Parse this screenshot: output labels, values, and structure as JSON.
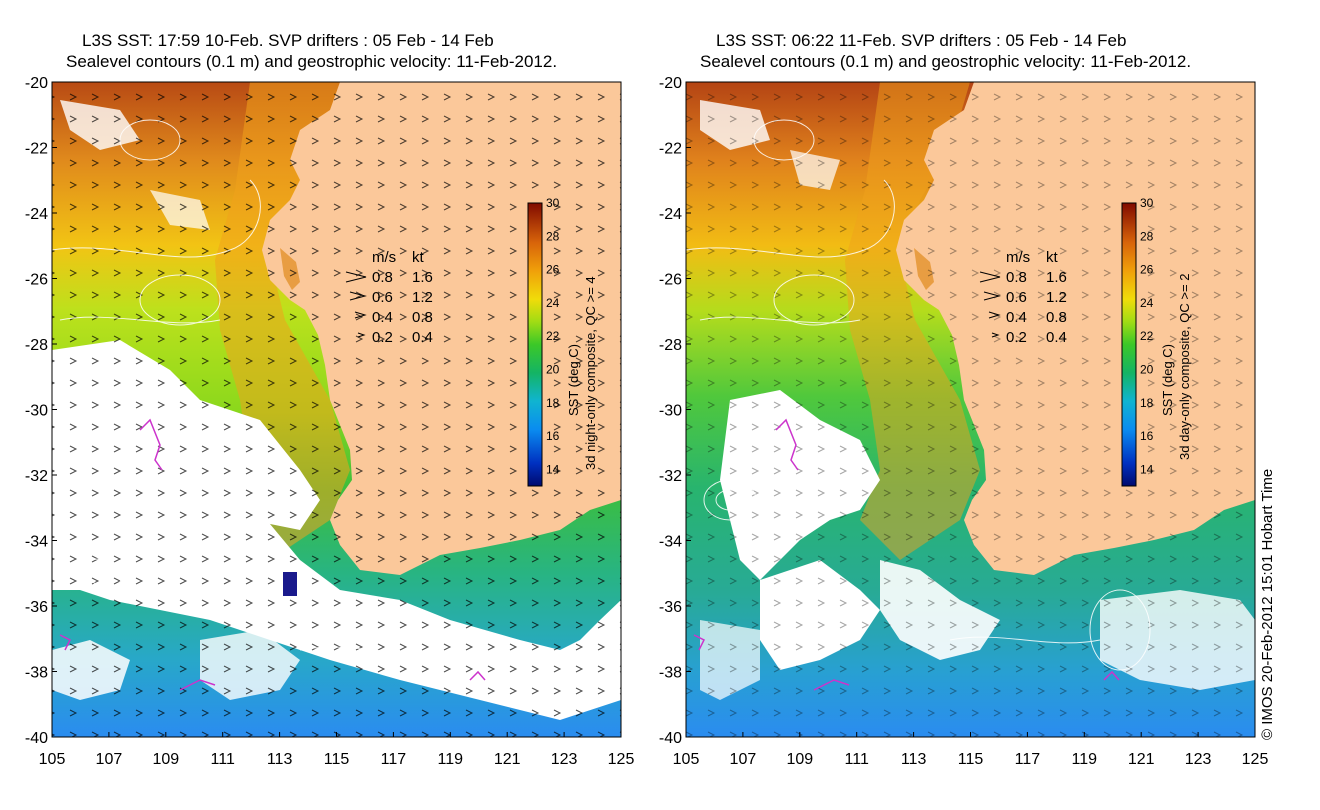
{
  "colors": {
    "land": "#fbc89a",
    "cloud": "#ffffff",
    "drifter": "#cc33cc",
    "contour": "#ffffff",
    "arrow": "#000000"
  },
  "x_ticks": [
    "105",
    "107",
    "109",
    "111",
    "113",
    "115",
    "117",
    "119",
    "121",
    "123",
    "125"
  ],
  "y_ticks": [
    "-20",
    "-22",
    "-24",
    "-26",
    "-28",
    "-30",
    "-32",
    "-34",
    "-36",
    "-38",
    "-40"
  ],
  "colorbar_ticks": [
    "30",
    "28",
    "26",
    "24",
    "22",
    "20",
    "18",
    "16",
    "14"
  ],
  "legend": {
    "header_ms": "m/s",
    "header_kt": "kt",
    "rows": [
      {
        "ms": "0.8",
        "kt": "1.6"
      },
      {
        "ms": "0.6",
        "kt": "1.2"
      },
      {
        "ms": "0.4",
        "kt": "0.8"
      },
      {
        "ms": "0.2",
        "kt": "0.4"
      }
    ]
  },
  "panels": [
    {
      "title_line1": "L3S SST: 17:59 10-Feb. SVP drifters : 05 Feb - 14 Feb",
      "title_line2": "Sealevel contours (0.1 m) and geostrophic velocity: 11-Feb-2012.",
      "colorbar_title": "SST (deg C)",
      "colorbar_subtitle": "3d night-only composite, QC >= 4"
    },
    {
      "title_line1": "L3S SST: 06:22 11-Feb. SVP drifters : 05 Feb - 14 Feb",
      "title_line2": "Sealevel contours (0.1 m) and geostrophic velocity: 11-Feb-2012.",
      "colorbar_title": "SST (deg C)",
      "colorbar_subtitle": "3d day-only composite, QC >= 2"
    }
  ],
  "credit": "© IMOS 20-Feb-2012 15:01 Hobart Time"
}
